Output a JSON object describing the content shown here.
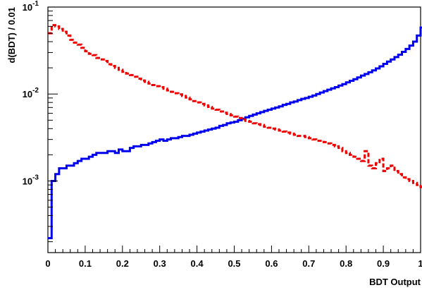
{
  "chart_data": {
    "type": "line",
    "xlabel": "BDT Output",
    "ylabel": "d(BDT) / 0.01",
    "xlim": [
      0,
      1
    ],
    "ylim": [
      0.00015,
      0.1
    ],
    "y_scale": "log",
    "grid": false,
    "legend": "none",
    "x_ticks": [
      "0",
      "0.1",
      "0.2",
      "0.3",
      "0.4",
      "0.5",
      "0.6",
      "0.7",
      "0.8",
      "0.9",
      "1"
    ],
    "y_ticks": [
      {
        "value": 0.001,
        "base": "10",
        "exp": "-3"
      },
      {
        "value": 0.01,
        "base": "10",
        "exp": "-2"
      },
      {
        "value": 0.1,
        "base": "10",
        "exp": "-1"
      }
    ],
    "bin_width": 0.01,
    "series": [
      {
        "color": "#0000ee",
        "style": "solid",
        "values": [
          0.00022,
          0.001,
          0.0012,
          0.0014,
          0.0014,
          0.0015,
          0.0015,
          0.0016,
          0.0017,
          0.0018,
          0.0018,
          0.0019,
          0.002,
          0.0021,
          0.0021,
          0.0021,
          0.0022,
          0.0022,
          0.0021,
          0.0023,
          0.0022,
          0.0022,
          0.0024,
          0.0025,
          0.0025,
          0.0026,
          0.0026,
          0.0027,
          0.0028,
          0.0029,
          0.003,
          0.0029,
          0.003,
          0.0031,
          0.0031,
          0.0032,
          0.0033,
          0.0033,
          0.0034,
          0.0035,
          0.0036,
          0.0037,
          0.0038,
          0.0039,
          0.004,
          0.0041,
          0.0043,
          0.0044,
          0.0046,
          0.0047,
          0.0048,
          0.005,
          0.0052,
          0.0054,
          0.0056,
          0.0058,
          0.006,
          0.0062,
          0.0064,
          0.0066,
          0.0068,
          0.007,
          0.0072,
          0.0075,
          0.0077,
          0.008,
          0.0082,
          0.0085,
          0.0088,
          0.009,
          0.0093,
          0.0096,
          0.01,
          0.0104,
          0.0108,
          0.0112,
          0.0116,
          0.012,
          0.0125,
          0.013,
          0.0136,
          0.0142,
          0.0148,
          0.0155,
          0.0163,
          0.017,
          0.0178,
          0.0187,
          0.0197,
          0.0208,
          0.0222,
          0.0236,
          0.025,
          0.0266,
          0.0283,
          0.0305,
          0.033,
          0.036,
          0.04,
          0.047,
          0.058
        ]
      },
      {
        "color": "#ee0000",
        "style": "dashed",
        "values": [
          0.05,
          0.062,
          0.06,
          0.056,
          0.052,
          0.047,
          0.042,
          0.039,
          0.037,
          0.034,
          0.031,
          0.029,
          0.028,
          0.026,
          0.025,
          0.024,
          0.022,
          0.021,
          0.02,
          0.019,
          0.018,
          0.0172,
          0.0165,
          0.0158,
          0.015,
          0.0143,
          0.0138,
          0.0132,
          0.0127,
          0.0123,
          0.012,
          0.0115,
          0.011,
          0.0106,
          0.0102,
          0.0099,
          0.0095,
          0.0091,
          0.0087,
          0.0083,
          0.008,
          0.0077,
          0.0074,
          0.0071,
          0.0068,
          0.0066,
          0.0063,
          0.0061,
          0.0059,
          0.0057,
          0.0055,
          0.0053,
          0.0051,
          0.0049,
          0.0048,
          0.0046,
          0.0045,
          0.0044,
          0.0042,
          0.0041,
          0.004,
          0.0039,
          0.0038,
          0.0037,
          0.0036,
          0.0035,
          0.0034,
          0.0033,
          0.0033,
          0.0032,
          0.0031,
          0.003,
          0.0029,
          0.0029,
          0.0028,
          0.0027,
          0.0026,
          0.0025,
          0.0024,
          0.0022,
          0.0021,
          0.002,
          0.0019,
          0.0018,
          0.0017,
          0.0022,
          0.0015,
          0.0014,
          0.0016,
          0.0018,
          0.0013,
          0.0014,
          0.0015,
          0.0013,
          0.0012,
          0.0011,
          0.00105,
          0.001,
          0.00095,
          0.0009,
          0.00085
        ]
      }
    ]
  }
}
